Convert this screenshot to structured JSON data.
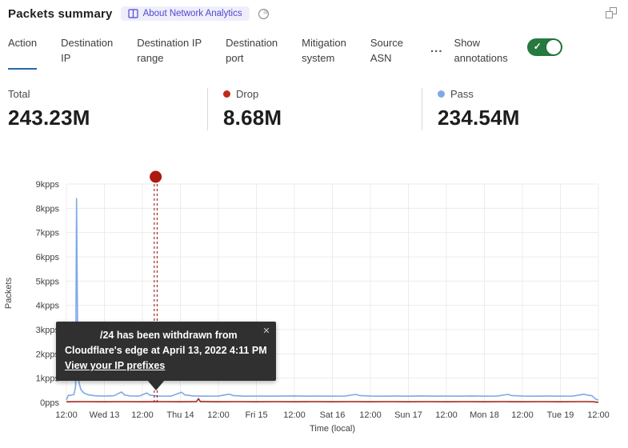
{
  "header": {
    "title": "Packets summary",
    "about_badge_label": "About Network Analytics",
    "icons": {
      "badge": "book-icon",
      "after_badge": "time-icon",
      "top_right": "expand-window-icon"
    }
  },
  "tabs": {
    "items": [
      {
        "label": "Action",
        "active": true
      },
      {
        "label": "Destination\nIP",
        "active": false
      },
      {
        "label": "Destination IP\nrange",
        "active": false
      },
      {
        "label": "Destination\nport",
        "active": false
      },
      {
        "label": "Mitigation\nsystem",
        "active": false
      },
      {
        "label": "Source\nASN",
        "active": false
      }
    ],
    "more_label": "...",
    "show_annotations_label": "Show\nannotations",
    "show_annotations_enabled": true,
    "toggle_check": "✓",
    "accent_color": "#2867ac",
    "toggle_color": "#26793f"
  },
  "stats": [
    {
      "label": "Total",
      "value": "243.23M",
      "dot_color": null
    },
    {
      "label": "Drop",
      "value": "8.68M",
      "dot_color": "#c1281c"
    },
    {
      "label": "Pass",
      "value": "234.54M",
      "dot_color": "#7fa9e4"
    }
  ],
  "tooltip": {
    "lines": [
      "/24 has been withdrawn from",
      "Cloudflare's edge at April 13, 2022 4:11 PM"
    ],
    "link_label": "View your IP prefixes",
    "close_glyph": "✕"
  },
  "chart_data": {
    "type": "line",
    "title": "",
    "ylabel": "Packets",
    "xlabel": "Time (local)",
    "ylim": [
      0,
      9000
    ],
    "x_range_hours": [
      0,
      168
    ],
    "grid": true,
    "y_ticks": [
      {
        "v": 0,
        "label": "0pps"
      },
      {
        "v": 1000,
        "label": "1kpps"
      },
      {
        "v": 2000,
        "label": "2kpps"
      },
      {
        "v": 3000,
        "label": "3kpps"
      },
      {
        "v": 4000,
        "label": "4kpps"
      },
      {
        "v": 5000,
        "label": "5kpps"
      },
      {
        "v": 6000,
        "label": "6kpps"
      },
      {
        "v": 7000,
        "label": "7kpps"
      },
      {
        "v": 8000,
        "label": "8kpps"
      },
      {
        "v": 9000,
        "label": "9kpps"
      }
    ],
    "x_ticks": [
      "12:00",
      "Wed 13",
      "12:00",
      "Thu 14",
      "12:00",
      "Fri 15",
      "12:00",
      "Sat 16",
      "12:00",
      "Sun 17",
      "12:00",
      "Mon 18",
      "12:00",
      "Tue 19",
      "12:00"
    ],
    "series": [
      {
        "name": "Pass",
        "color": "#7fa9e4",
        "points": [
          [
            0,
            100
          ],
          [
            0.6,
            290
          ],
          [
            1.6,
            300
          ],
          [
            2.4,
            330
          ],
          [
            2.9,
            650
          ],
          [
            3.2,
            8400
          ],
          [
            3.55,
            2400
          ],
          [
            4,
            800
          ],
          [
            4.6,
            520
          ],
          [
            5.5,
            390
          ],
          [
            7,
            310
          ],
          [
            9,
            275
          ],
          [
            12,
            262
          ],
          [
            15,
            272
          ],
          [
            17.4,
            430
          ],
          [
            18.4,
            305
          ],
          [
            20,
            268
          ],
          [
            23,
            262
          ],
          [
            25.4,
            385
          ],
          [
            26.4,
            300
          ],
          [
            29,
            262
          ],
          [
            33,
            258
          ],
          [
            36.4,
            420
          ],
          [
            37.4,
            310
          ],
          [
            40,
            266
          ],
          [
            44,
            258
          ],
          [
            48,
            262
          ],
          [
            51.4,
            340
          ],
          [
            52.6,
            282
          ],
          [
            56,
            258
          ],
          [
            60,
            262
          ],
          [
            64,
            258
          ],
          [
            68,
            262
          ],
          [
            72,
            266
          ],
          [
            76,
            258
          ],
          [
            80,
            262
          ],
          [
            84,
            258
          ],
          [
            88,
            262
          ],
          [
            91.4,
            330
          ],
          [
            92.6,
            282
          ],
          [
            96,
            262
          ],
          [
            100,
            258
          ],
          [
            104,
            262
          ],
          [
            108,
            258
          ],
          [
            112,
            266
          ],
          [
            116,
            258
          ],
          [
            120,
            262
          ],
          [
            124,
            258
          ],
          [
            128,
            266
          ],
          [
            132,
            258
          ],
          [
            136,
            262
          ],
          [
            139.4,
            330
          ],
          [
            140.6,
            282
          ],
          [
            144,
            262
          ],
          [
            148,
            258
          ],
          [
            152,
            262
          ],
          [
            156,
            258
          ],
          [
            160,
            262
          ],
          [
            163.4,
            335
          ],
          [
            164.6,
            300
          ],
          [
            166,
            272
          ],
          [
            167.2,
            130
          ],
          [
            168,
            95
          ]
        ]
      },
      {
        "name": "Drop",
        "color": "#a5281e",
        "points": [
          [
            0,
            26
          ],
          [
            6,
            32
          ],
          [
            12,
            28
          ],
          [
            18,
            33
          ],
          [
            24,
            28
          ],
          [
            30,
            32
          ],
          [
            36,
            28
          ],
          [
            41.1,
            36
          ],
          [
            41.7,
            155
          ],
          [
            42.3,
            36
          ],
          [
            48,
            28
          ],
          [
            54,
            32
          ],
          [
            60,
            28
          ],
          [
            66,
            32
          ],
          [
            72,
            28
          ],
          [
            78,
            33
          ],
          [
            84,
            28
          ],
          [
            90,
            32
          ],
          [
            96,
            28
          ],
          [
            102,
            33
          ],
          [
            108,
            28
          ],
          [
            114,
            32
          ],
          [
            120,
            28
          ],
          [
            126,
            33
          ],
          [
            132,
            28
          ],
          [
            138,
            32
          ],
          [
            144,
            28
          ],
          [
            150,
            33
          ],
          [
            156,
            28
          ],
          [
            162,
            32
          ],
          [
            165,
            33
          ],
          [
            166.8,
            22
          ],
          [
            167.5,
            8
          ],
          [
            168,
            5
          ]
        ]
      }
    ],
    "annotation": {
      "x_hours": 28.2,
      "line_color": "#9e1b12",
      "dot_color": "#ad1a10"
    }
  }
}
